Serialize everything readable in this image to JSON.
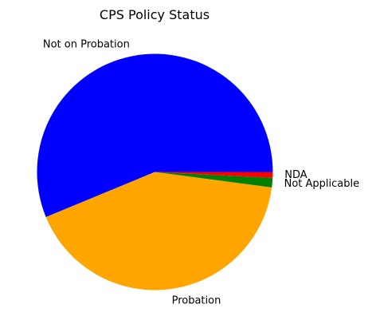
{
  "chart_data": {
    "type": "pie",
    "title": "CPS Policy Status",
    "start_angle_deg": 0,
    "direction": "counterclockwise",
    "slices": [
      {
        "label": "Not on Probation",
        "value": 56.4,
        "color": "#0000ff"
      },
      {
        "label": "Probation",
        "value": 41.8,
        "color": "#ffa500"
      },
      {
        "label": "Not Applicable",
        "value": 1.3,
        "color": "#008000"
      },
      {
        "label": "NDA",
        "value": 0.8,
        "color": "#ff0000"
      }
    ],
    "legend": "none"
  }
}
